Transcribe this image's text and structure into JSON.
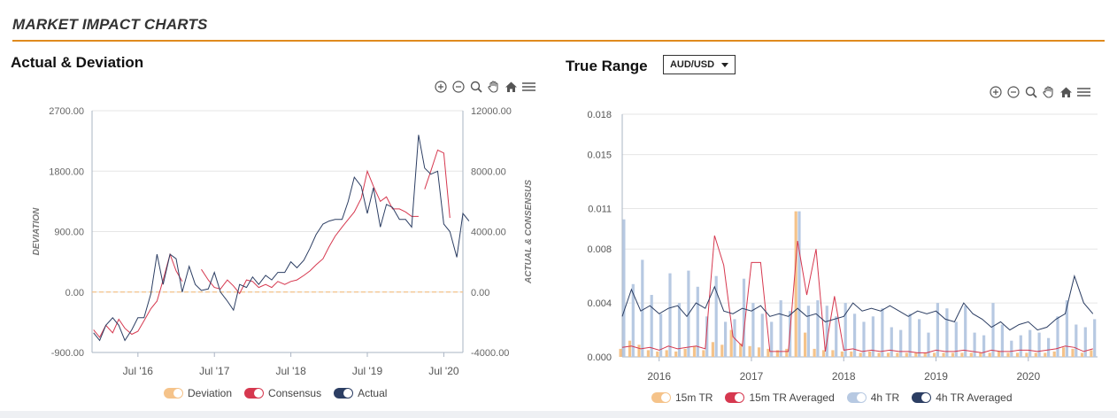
{
  "header": {
    "title": "MARKET IMPACT CHARTS",
    "accent": "#e08a1e"
  },
  "toolbar_icons": [
    "zoom-in-icon",
    "zoom-out-icon",
    "magnify-icon",
    "pan-hand-icon",
    "home-icon",
    "menu-icon"
  ],
  "left_panel": {
    "title": "Actual & Deviation"
  },
  "right_panel": {
    "title": "True Range",
    "pair_select": {
      "value": "AUD/USD"
    }
  },
  "chart_data": [
    {
      "type": "line",
      "title": "Actual & Deviation",
      "ylabel": "DEVIATION",
      "y2label": "ACTUAL & CONSENSUS",
      "ylim": [
        -900,
        2700
      ],
      "y2lim": [
        -4000,
        12000
      ],
      "yticks": [
        "2700.00",
        "1800.00",
        "900.00",
        "0.00",
        "-900.00"
      ],
      "y2ticks": [
        "12000.00",
        "8000.00",
        "4000.00",
        "0.00",
        "-4000.00"
      ],
      "xlim": [
        2015.9,
        2020.75
      ],
      "xticks": [
        {
          "label": "Jul '16",
          "x": 2016.5
        },
        {
          "label": "Jul '17",
          "x": 2017.5
        },
        {
          "label": "Jul '18",
          "x": 2018.5
        },
        {
          "label": "Jul '19",
          "x": 2019.5
        },
        {
          "label": "Jul '20",
          "x": 2020.5
        }
      ],
      "legend": "bottom",
      "series": [
        {
          "name": "Deviation",
          "axis": "left",
          "color": "#f5c38a",
          "style": "dashed",
          "x": [
            2015.9,
            2020.75
          ],
          "y": [
            0,
            0
          ]
        },
        {
          "name": "Consensus",
          "axis": "right",
          "color": "#d6384f",
          "segments": [
            {
              "x": [
                2015.92,
                2016.0,
                2016.08,
                2016.17,
                2016.25,
                2016.33,
                2016.42,
                2016.5,
                2016.58,
                2016.67,
                2016.75,
                2016.83,
                2016.92,
                2017.0,
                2017.08
              ],
              "y": [
                -2500,
                -3000,
                -2200,
                -2700,
                -1800,
                -2400,
                -2800,
                -2600,
                -1900,
                -1100,
                -600,
                800,
                2500,
                1400,
                700
              ]
            },
            {
              "x": [
                2017.33,
                2017.42,
                2017.5,
                2017.58,
                2017.67,
                2017.75,
                2017.83,
                2017.92,
                2018.0,
                2018.08,
                2018.17,
                2018.25,
                2018.33,
                2018.42,
                2018.5,
                2018.58,
                2018.67,
                2018.75,
                2018.83,
                2018.92,
                2019.0,
                2019.08,
                2019.17,
                2019.25,
                2019.33,
                2019.42,
                2019.5,
                2019.58,
                2019.67,
                2019.75,
                2019.83,
                2019.92,
                2020.0,
                2020.08,
                2020.17
              ],
              "y": [
                1500,
                800,
                300,
                200,
                800,
                400,
                -100,
                800,
                700,
                300,
                500,
                300,
                700,
                500,
                700,
                800,
                1100,
                1400,
                1800,
                2200,
                3000,
                3700,
                4300,
                4800,
                5300,
                6200,
                8000,
                7000,
                6000,
                6300,
                5500,
                5500,
                5300,
                5000,
                5000
              ]
            },
            {
              "x": [
                2020.25,
                2020.33,
                2020.42,
                2020.5,
                2020.58
              ],
              "y": [
                6800,
                8000,
                9400,
                9200,
                4900
              ]
            }
          ]
        },
        {
          "name": "Actual",
          "axis": "right",
          "color": "#2c3e63",
          "x": [
            2015.92,
            2016.0,
            2016.08,
            2016.17,
            2016.25,
            2016.33,
            2016.42,
            2016.5,
            2016.58,
            2016.67,
            2016.75,
            2016.83,
            2016.92,
            2017.0,
            2017.08,
            2017.17,
            2017.25,
            2017.33,
            2017.42,
            2017.5,
            2017.58,
            2017.67,
            2017.75,
            2017.83,
            2017.92,
            2018.0,
            2018.08,
            2018.17,
            2018.25,
            2018.33,
            2018.42,
            2018.5,
            2018.58,
            2018.67,
            2018.75,
            2018.83,
            2018.92,
            2019.0,
            2019.08,
            2019.17,
            2019.25,
            2019.33,
            2019.42,
            2019.5,
            2019.58,
            2019.67,
            2019.75,
            2019.83,
            2019.92,
            2020.0,
            2020.08,
            2020.17,
            2020.25,
            2020.33,
            2020.42,
            2020.5,
            2020.58,
            2020.67,
            2020.75,
            2020.83
          ],
          "y": [
            -2700,
            -3200,
            -2200,
            -1700,
            -2200,
            -3200,
            -2500,
            -1700,
            -1700,
            -100,
            2500,
            500,
            2500,
            2200,
            0,
            1700,
            500,
            100,
            200,
            1300,
            0,
            -600,
            -1200,
            500,
            300,
            1000,
            500,
            1100,
            800,
            1300,
            1300,
            2000,
            1600,
            2100,
            2900,
            3800,
            4500,
            4700,
            4800,
            4800,
            6000,
            7600,
            7000,
            5200,
            6900,
            4300,
            5800,
            5600,
            4800,
            4800,
            4300,
            10400,
            8200,
            7800,
            8000,
            4500,
            4000,
            2300,
            5200,
            4700
          ]
        }
      ]
    },
    {
      "type": "bar",
      "title": "True Range",
      "ylim": [
        0,
        0.018
      ],
      "yticks": [
        "0.018",
        "0.015",
        "0.011",
        "0.008",
        "0.004",
        "0.000"
      ],
      "xlim": [
        2015.6,
        2020.75
      ],
      "xticks": [
        {
          "label": "2016",
          "x": 2016
        },
        {
          "label": "2017",
          "x": 2017
        },
        {
          "label": "2018",
          "x": 2018
        },
        {
          "label": "2019",
          "x": 2019
        },
        {
          "label": "2020",
          "x": 2020
        }
      ],
      "legend": "bottom",
      "x": [
        2015.6,
        2015.7,
        2015.8,
        2015.9,
        2016.0,
        2016.1,
        2016.2,
        2016.3,
        2016.4,
        2016.5,
        2016.6,
        2016.7,
        2016.8,
        2016.9,
        2017.0,
        2017.1,
        2017.2,
        2017.3,
        2017.4,
        2017.5,
        2017.6,
        2017.7,
        2017.8,
        2017.9,
        2018.0,
        2018.1,
        2018.2,
        2018.3,
        2018.4,
        2018.5,
        2018.6,
        2018.7,
        2018.8,
        2018.9,
        2019.0,
        2019.1,
        2019.2,
        2019.3,
        2019.4,
        2019.5,
        2019.6,
        2019.7,
        2019.8,
        2019.9,
        2020.0,
        2020.1,
        2020.2,
        2020.3,
        2020.4,
        2020.5,
        2020.6,
        2020.7
      ],
      "series": [
        {
          "name": "15m TR",
          "kind": "bar",
          "color": "#f5c38a",
          "values": [
            0.0006,
            0.0012,
            0.0009,
            0.0005,
            0.0004,
            0.0005,
            0.0004,
            0.0006,
            0.0008,
            0.0005,
            0.0011,
            0.0009,
            0.002,
            0.001,
            0.0008,
            0.0007,
            0.0006,
            0.0005,
            0.0006,
            0.0108,
            0.0018,
            0.0006,
            0.0005,
            0.0005,
            0.0004,
            0.0004,
            0.0003,
            0.0004,
            0.0003,
            0.0003,
            0.0003,
            0.0003,
            0.0003,
            0.0003,
            0.0003,
            0.0003,
            0.0003,
            0.0003,
            0.0003,
            0.0003,
            0.0003,
            0.0004,
            0.0003,
            0.0003,
            0.0003,
            0.0003,
            0.0003,
            0.0004,
            0.0007,
            0.0006,
            0.0003,
            0.0005
          ]
        },
        {
          "name": "15m TR Averaged",
          "kind": "line",
          "color": "#d6384f",
          "values": [
            0.0007,
            0.0008,
            0.0006,
            0.0007,
            0.0005,
            0.0008,
            0.0006,
            0.0007,
            0.0008,
            0.0006,
            0.009,
            0.0068,
            0.0015,
            0.0008,
            0.007,
            0.007,
            0.0004,
            0.0004,
            0.0004,
            0.0086,
            0.0046,
            0.008,
            0.0004,
            0.0045,
            0.0005,
            0.0006,
            0.0004,
            0.0005,
            0.0004,
            0.0005,
            0.0004,
            0.0004,
            0.0003,
            0.0003,
            0.0005,
            0.0004,
            0.0004,
            0.0005,
            0.0004,
            0.0003,
            0.0005,
            0.0004,
            0.0004,
            0.0005,
            0.0005,
            0.0004,
            0.0005,
            0.0006,
            0.0008,
            0.0007,
            0.0004,
            0.0006
          ]
        },
        {
          "name": "4h TR",
          "kind": "bar",
          "color": "#b7c9e2",
          "values": [
            0.0102,
            0.0054,
            0.0072,
            0.0046,
            0.0032,
            0.0062,
            0.004,
            0.0064,
            0.0052,
            0.003,
            0.006,
            0.0026,
            0.0028,
            0.0058,
            0.004,
            0.0032,
            0.0026,
            0.0042,
            0.0034,
            0.0108,
            0.0038,
            0.0042,
            0.0038,
            0.003,
            0.004,
            0.0032,
            0.0026,
            0.003,
            0.0036,
            0.0022,
            0.002,
            0.0032,
            0.0028,
            0.0018,
            0.004,
            0.0036,
            0.0026,
            0.0038,
            0.0018,
            0.0016,
            0.004,
            0.0024,
            0.0012,
            0.0016,
            0.002,
            0.0018,
            0.0014,
            0.003,
            0.0042,
            0.0024,
            0.0022,
            0.0028
          ]
        },
        {
          "name": "4h TR Averaged",
          "kind": "line",
          "color": "#2c3e63",
          "values": [
            0.003,
            0.005,
            0.0034,
            0.0038,
            0.0032,
            0.0036,
            0.0038,
            0.003,
            0.004,
            0.0036,
            0.0052,
            0.0034,
            0.0032,
            0.0036,
            0.0034,
            0.0038,
            0.003,
            0.0032,
            0.003,
            0.0036,
            0.003,
            0.0032,
            0.0026,
            0.0028,
            0.003,
            0.004,
            0.0034,
            0.0036,
            0.0034,
            0.0038,
            0.0034,
            0.003,
            0.0034,
            0.0032,
            0.0034,
            0.0028,
            0.0026,
            0.004,
            0.0032,
            0.0028,
            0.0022,
            0.0026,
            0.002,
            0.0024,
            0.0026,
            0.002,
            0.0022,
            0.0028,
            0.0032,
            0.006,
            0.004,
            0.0032
          ]
        }
      ]
    }
  ]
}
